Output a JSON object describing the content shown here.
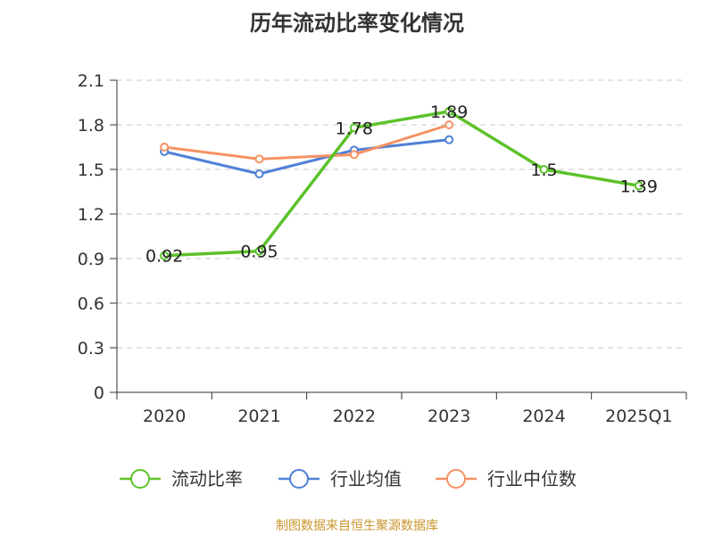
{
  "chart_data": {
    "type": "line",
    "title": "历年流动比率变化情况",
    "categories": [
      "2020",
      "2021",
      "2022",
      "2023",
      "2024",
      "2025Q1"
    ],
    "ylim": [
      0,
      2.1
    ],
    "yticks": [
      "0",
      "0.3",
      "0.6",
      "0.9",
      "1.2",
      "1.5",
      "1.8",
      "2.1"
    ],
    "grid": true,
    "legend_position": "bottom",
    "series": [
      {
        "name": "流动比率",
        "color": "#5cc22a",
        "values": [
          0.92,
          0.95,
          1.78,
          1.89,
          1.5,
          1.39
        ],
        "labels": [
          "0.92",
          "0.95",
          "1.78",
          "1.89",
          "1.5",
          "1.39"
        ]
      },
      {
        "name": "行业均值",
        "color": "#4f80d6",
        "values": [
          1.62,
          1.47,
          1.63,
          1.7,
          null,
          null
        ]
      },
      {
        "name": "行业中位数",
        "color": "#f59262",
        "values": [
          1.65,
          1.57,
          1.6,
          1.8,
          null,
          null
        ]
      }
    ]
  },
  "source_text": "制图数据来自恒生聚源数据库"
}
